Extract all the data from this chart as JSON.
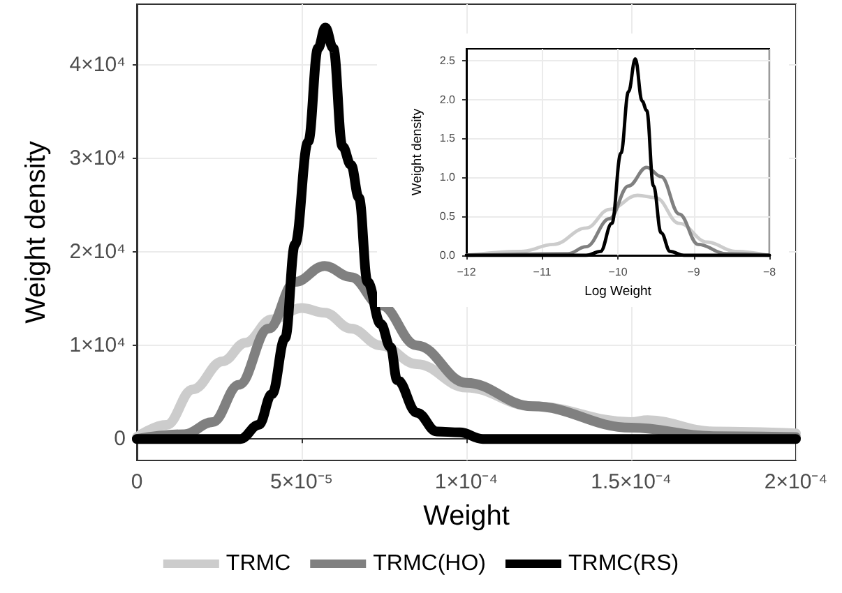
{
  "chart_data": [
    {
      "type": "line",
      "xlabel": "Weight",
      "ylabel": "Weight density",
      "xlim": [
        0,
        0.0002
      ],
      "xticks": [
        0,
        {
          "value": 5e-05,
          "label": "5×10⁻⁵"
        },
        {
          "value": 0.0001,
          "label": "1×10⁻⁴"
        },
        {
          "value": 0.00015,
          "label": "1.5×10⁻⁴"
        },
        {
          "value": 0.0002,
          "label": "2×10⁻⁴"
        }
      ],
      "ylim": [
        -2300,
        46500
      ],
      "yticks": [
        0,
        {
          "value": 10000,
          "label": "1×10⁴"
        },
        {
          "value": 20000,
          "label": "2×10⁴"
        },
        {
          "value": 30000,
          "label": "3×10⁴"
        },
        {
          "value": 40000,
          "label": "4×10⁴"
        }
      ],
      "grid": true,
      "legend": "bottom",
      "series": [
        {
          "name": "TRMC",
          "color": "#cccccc",
          "x": [
            0,
            9e-06,
            1.7e-05,
            2.6e-05,
            3.3e-05,
            4.1e-05,
            5e-05,
            5.7e-05,
            6.5e-05,
            7.4e-05,
            8.5e-05,
            0.0001,
            0.00012,
            0.00015,
            0.000155,
            0.000175,
            0.0002
          ],
          "values": [
            200,
            1500,
            5300,
            8300,
            10300,
            12800,
            14000,
            13500,
            11800,
            10000,
            8000,
            5500,
            3500,
            1800,
            2000,
            800,
            600
          ]
        },
        {
          "name": "TRMC(HO)",
          "color": "#808080",
          "x": [
            0,
            1.44e-05,
            2.3e-05,
            3.1e-05,
            4e-05,
            4.8e-05,
            5.7e-05,
            6.5e-05,
            7.4e-05,
            8.5e-05,
            0.0001,
            0.00012,
            0.00015,
            0.000175,
            0.0002
          ],
          "values": [
            0,
            500,
            1800,
            5800,
            11800,
            16800,
            18500,
            17300,
            14300,
            10000,
            6000,
            3500,
            1200,
            300,
            200
          ]
        },
        {
          "name": "TRMC(RS)",
          "color": "#000000",
          "x": [
            0,
            3.14e-05,
            3.7e-05,
            4.1e-05,
            4.5e-05,
            4.8e-05,
            5.2e-05,
            5.5e-05,
            5.72e-05,
            5.96e-05,
            6.24e-05,
            6.5e-05,
            6.74e-05,
            7e-05,
            7.4e-05,
            7.7e-05,
            7.9e-05,
            8.5e-05,
            9.1e-05,
            9.8e-05,
            0.000105,
            0.0002
          ],
          "values": [
            0,
            0,
            1500,
            4800,
            10800,
            20800,
            31800,
            41800,
            44000,
            41800,
            31300,
            29300,
            25800,
            16800,
            12300,
            9800,
            6300,
            2800,
            800,
            700,
            0,
            0
          ]
        }
      ]
    },
    {
      "type": "line",
      "xlabel": "Log Weight",
      "ylabel": "Weight density",
      "xlim": [
        -12,
        -8
      ],
      "xticks": [
        {
          "value": -12,
          "label": "−12"
        },
        {
          "value": -11,
          "label": "−11"
        },
        {
          "value": -10,
          "label": "−10"
        },
        {
          "value": -9,
          "label": "−9"
        },
        {
          "value": -8,
          "label": "−8"
        }
      ],
      "ylim": [
        0,
        2.65
      ],
      "yticks": [
        {
          "value": 0,
          "label": "0.0"
        },
        0.5,
        {
          "value": 1,
          "label": "1.0"
        },
        1.5,
        {
          "value": 2,
          "label": "2.0"
        },
        2.5
      ],
      "grid": true,
      "series": [
        {
          "color": "#cccccc",
          "x": [
            -12,
            -11.28,
            -10.85,
            -10.42,
            -10.11,
            -9.74,
            -9.5,
            -9.19,
            -8.82,
            -8.45,
            -8
          ],
          "values": [
            0,
            0.05,
            0.14,
            0.35,
            0.59,
            0.77,
            0.74,
            0.41,
            0.17,
            0.05,
            0
          ]
        },
        {
          "color": "#808080",
          "x": [
            -12,
            -10.66,
            -10.42,
            -10.11,
            -9.86,
            -9.62,
            -9.43,
            -9.19,
            -8.94,
            -8.57,
            -8
          ],
          "values": [
            0,
            0.02,
            0.11,
            0.47,
            0.89,
            1.13,
            1.01,
            0.53,
            0.14,
            0.02,
            0
          ]
        },
        {
          "color": "#000000",
          "x": [
            -12,
            -10.42,
            -10.23,
            -10.08,
            -9.96,
            -9.86,
            -9.77,
            -9.68,
            -9.62,
            -9.53,
            -9.43,
            -9.31,
            -9.13,
            -8
          ],
          "values": [
            0,
            0,
            0.05,
            0.41,
            1.31,
            2.1,
            2.52,
            1.98,
            1.86,
            0.89,
            0.29,
            0.05,
            0,
            0
          ]
        }
      ]
    }
  ]
}
